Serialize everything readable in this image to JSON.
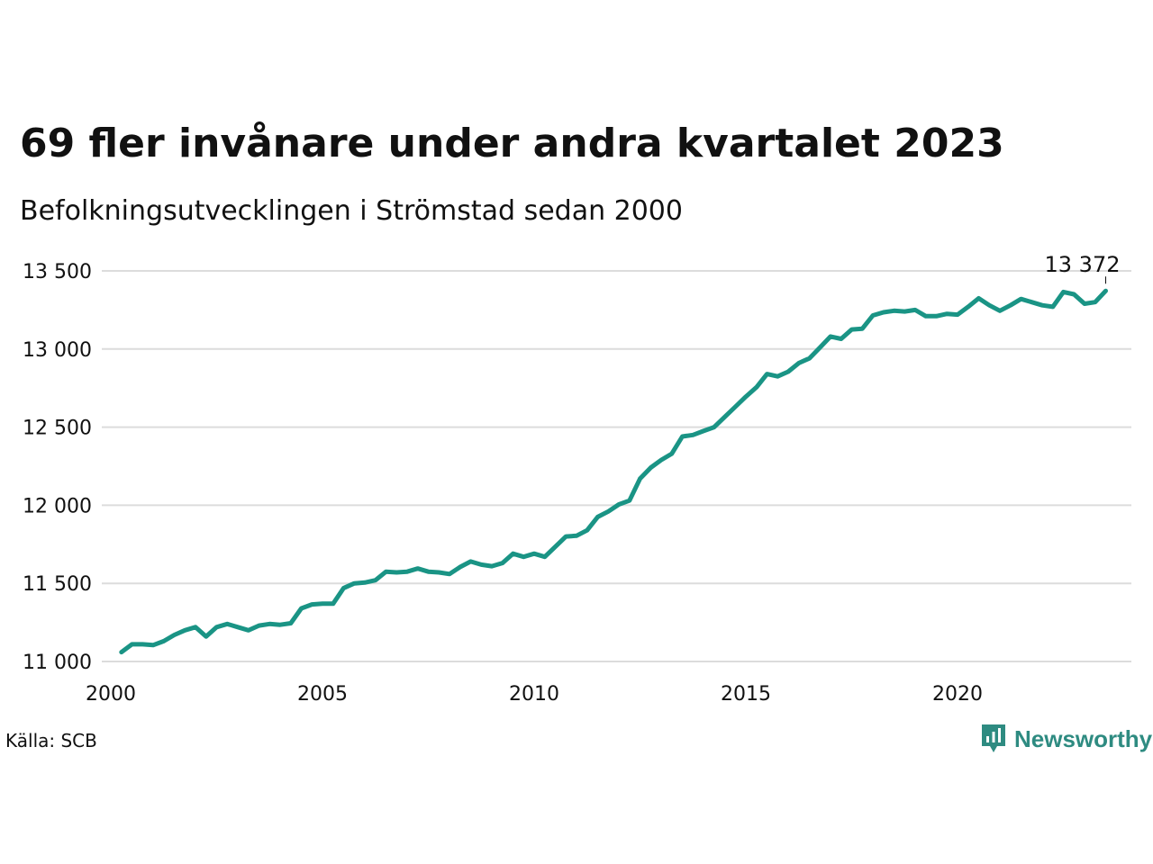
{
  "title": "69 fler invånare under andra kvartalet 2023",
  "subtitle": "Befolkningsutvecklingen i Strömstad sedan 2000",
  "source": "Källa: SCB",
  "brand": {
    "name": "Newsworthy",
    "icon": "newsworthy-logo-icon",
    "color": "#2e8b81"
  },
  "chart_data": {
    "type": "line",
    "title": "69 fler invånare under andra kvartalet 2023",
    "subtitle": "Befolkningsutvecklingen i Strömstad sedan 2000",
    "xlabel": "",
    "ylabel": "",
    "xlim": [
      2000,
      2024.25
    ],
    "ylim": [
      11000,
      13500
    ],
    "x_ticks": [
      2000,
      2005,
      2010,
      2015,
      2020
    ],
    "x_tick_labels": [
      "2000",
      "2005",
      "2010",
      "2015",
      "2020"
    ],
    "y_ticks": [
      11000,
      11500,
      12000,
      12500,
      13000,
      13500
    ],
    "y_tick_labels": [
      "11 000",
      "11 500",
      "12 000",
      "12 500",
      "13 000",
      "13 500"
    ],
    "grid": "horizontal",
    "line_color": "#1a9485",
    "series": [
      {
        "x_start": 2000.25,
        "x_step": 0.25,
        "values": [
          11060,
          11110,
          11110,
          11105,
          11130,
          11170,
          11200,
          11220,
          11160,
          11220,
          11240,
          11220,
          11200,
          11230,
          11240,
          11235,
          11245,
          11340,
          11365,
          11370,
          11370,
          11470,
          11500,
          11505,
          11520,
          11575,
          11570,
          11575,
          11595,
          11575,
          11570,
          11560,
          11605,
          11640,
          11620,
          11610,
          11630,
          11690,
          11670,
          11690,
          11670,
          11735,
          11800,
          11805,
          11840,
          11925,
          11960,
          12005,
          12030,
          12170,
          12240,
          12290,
          12330,
          12440,
          12450,
          12475,
          12500,
          12565,
          12630,
          12695,
          12755,
          12840,
          12825,
          12855,
          12910,
          12940,
          13010,
          13080,
          13065,
          13125,
          13130,
          13215,
          13235,
          13245,
          13240,
          13250,
          13210,
          13210,
          13225,
          13220,
          13270,
          13325,
          13280,
          13245,
          13280,
          13320,
          13300,
          13280,
          13270,
          13365,
          13350,
          13290,
          13300,
          13372
        ]
      }
    ],
    "annotation": {
      "label": "13 372",
      "x": 2023.5,
      "y": 13372
    }
  }
}
